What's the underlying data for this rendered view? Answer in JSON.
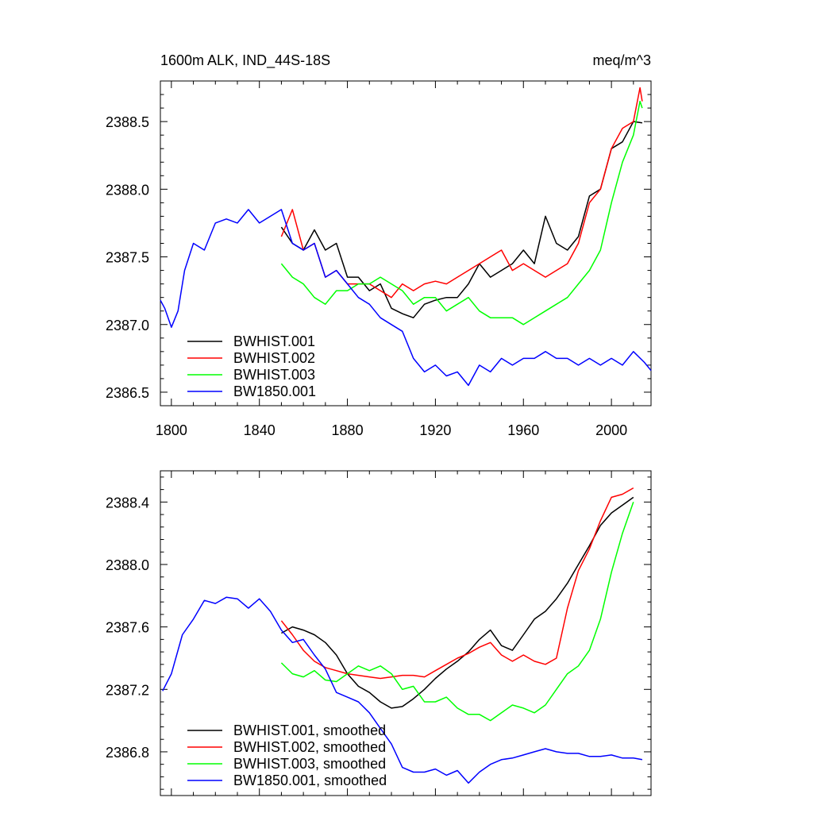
{
  "chart_data": [
    {
      "type": "line",
      "title_left": "1600m ALK, IND_44S-18S",
      "title_right": "meq/m^3",
      "xlim": [
        1795,
        2018
      ],
      "ylim": [
        2386.4,
        2388.8
      ],
      "x_ticks": [
        1800,
        1840,
        1880,
        1920,
        1960,
        2000
      ],
      "x_tick_labels": [
        "1800",
        "1840",
        "1880",
        "1920",
        "1960",
        "2000"
      ],
      "y_ticks": [
        2386.5,
        2387.0,
        2387.5,
        2388.0,
        2388.5
      ],
      "y_tick_labels": [
        "2386.5",
        "2387.0",
        "2387.5",
        "2388.0",
        "2388.5"
      ],
      "legend_position": "lower-left",
      "series": [
        {
          "name": "BWHIST.001",
          "color": "#000000",
          "x": [
            1850,
            1855,
            1860,
            1865,
            1870,
            1875,
            1880,
            1885,
            1890,
            1895,
            1900,
            1905,
            1910,
            1915,
            1920,
            1925,
            1930,
            1935,
            1940,
            1945,
            1950,
            1955,
            1960,
            1965,
            1970,
            1975,
            1980,
            1985,
            1990,
            1995,
            2000,
            2005,
            2010,
            2014
          ],
          "y": [
            2387.72,
            2387.6,
            2387.55,
            2387.7,
            2387.55,
            2387.6,
            2387.35,
            2387.35,
            2387.25,
            2387.3,
            2387.12,
            2387.08,
            2387.05,
            2387.15,
            2387.18,
            2387.2,
            2387.2,
            2387.3,
            2387.45,
            2387.35,
            2387.4,
            2387.45,
            2387.55,
            2387.45,
            2387.8,
            2387.6,
            2387.55,
            2387.65,
            2387.95,
            2388.0,
            2388.3,
            2388.35,
            2388.5,
            2388.49
          ]
        },
        {
          "name": "BWHIST.002",
          "color": "#ff0000",
          "x": [
            1850,
            1855,
            1860,
            1865,
            1870,
            1875,
            1880,
            1885,
            1890,
            1895,
            1900,
            1905,
            1910,
            1915,
            1920,
            1925,
            1930,
            1935,
            1940,
            1945,
            1950,
            1955,
            1960,
            1965,
            1970,
            1975,
            1980,
            1985,
            1990,
            1995,
            2000,
            2005,
            2010,
            2013,
            2014
          ],
          "y": [
            2387.65,
            2387.85,
            2387.55,
            2387.6,
            2387.35,
            2387.4,
            2387.3,
            2387.3,
            2387.3,
            2387.25,
            2387.2,
            2387.3,
            2387.25,
            2387.3,
            2387.32,
            2387.3,
            2387.35,
            2387.4,
            2387.45,
            2387.5,
            2387.55,
            2387.4,
            2387.45,
            2387.4,
            2387.35,
            2387.4,
            2387.45,
            2387.6,
            2387.9,
            2388.0,
            2388.3,
            2388.45,
            2388.5,
            2388.75,
            2388.65
          ]
        },
        {
          "name": "BWHIST.003",
          "color": "#00ff00",
          "x": [
            1850,
            1855,
            1860,
            1865,
            1870,
            1875,
            1880,
            1885,
            1890,
            1895,
            1900,
            1905,
            1910,
            1915,
            1920,
            1925,
            1930,
            1935,
            1940,
            1945,
            1950,
            1955,
            1960,
            1965,
            1970,
            1975,
            1980,
            1985,
            1990,
            1995,
            2000,
            2005,
            2010,
            2013,
            2014
          ],
          "y": [
            2387.45,
            2387.35,
            2387.3,
            2387.2,
            2387.15,
            2387.25,
            2387.25,
            2387.3,
            2387.3,
            2387.35,
            2387.3,
            2387.25,
            2387.15,
            2387.2,
            2387.2,
            2387.1,
            2387.15,
            2387.2,
            2387.1,
            2387.05,
            2387.05,
            2387.05,
            2387.0,
            2387.05,
            2387.1,
            2387.15,
            2387.2,
            2387.3,
            2387.4,
            2387.55,
            2387.9,
            2388.2,
            2388.4,
            2388.65,
            2388.6
          ]
        },
        {
          "name": "BW1850.001",
          "color": "#0000ff",
          "x": [
            1795,
            1797,
            1800,
            1803,
            1806,
            1810,
            1815,
            1820,
            1825,
            1830,
            1835,
            1840,
            1845,
            1850,
            1855,
            1860,
            1865,
            1870,
            1875,
            1880,
            1885,
            1890,
            1895,
            1900,
            1905,
            1910,
            1915,
            1920,
            1925,
            1930,
            1935,
            1940,
            1945,
            1950,
            1955,
            1960,
            1965,
            1970,
            1975,
            1980,
            1985,
            1990,
            1995,
            2000,
            2005,
            2010,
            2015,
            2018
          ],
          "y": [
            2387.18,
            2387.12,
            2386.98,
            2387.1,
            2387.4,
            2387.6,
            2387.55,
            2387.75,
            2387.78,
            2387.75,
            2387.85,
            2387.75,
            2387.8,
            2387.85,
            2387.6,
            2387.55,
            2387.6,
            2387.35,
            2387.4,
            2387.3,
            2387.2,
            2387.15,
            2387.05,
            2387.0,
            2386.95,
            2386.75,
            2386.65,
            2386.7,
            2386.62,
            2386.65,
            2386.55,
            2386.7,
            2386.65,
            2386.75,
            2386.7,
            2386.75,
            2386.75,
            2386.8,
            2386.75,
            2386.75,
            2386.7,
            2386.75,
            2386.7,
            2386.75,
            2386.7,
            2386.8,
            2386.72,
            2386.66
          ]
        }
      ]
    },
    {
      "type": "line",
      "xlim": [
        1795,
        2018
      ],
      "ylim": [
        2386.52,
        2388.6
      ],
      "x_ticks": [
        1800,
        1840,
        1880,
        1920,
        1960,
        2000
      ],
      "y_ticks": [
        2386.8,
        2387.2,
        2387.6,
        2388.0,
        2388.4
      ],
      "y_tick_labels": [
        "2386.8",
        "2387.2",
        "2387.6",
        "2388.0",
        "2388.4"
      ],
      "legend_position": "lower-left",
      "series": [
        {
          "name": "BWHIST.001, smoothed",
          "color": "#000000",
          "x": [
            1850,
            1855,
            1860,
            1865,
            1870,
            1875,
            1880,
            1885,
            1890,
            1895,
            1900,
            1905,
            1910,
            1915,
            1920,
            1925,
            1930,
            1935,
            1940,
            1945,
            1950,
            1955,
            1960,
            1965,
            1970,
            1975,
            1980,
            1985,
            1990,
            1995,
            2000,
            2005,
            2010
          ],
          "y": [
            2387.56,
            2387.6,
            2387.58,
            2387.55,
            2387.5,
            2387.42,
            2387.3,
            2387.22,
            2387.18,
            2387.12,
            2387.08,
            2387.09,
            2387.14,
            2387.2,
            2387.27,
            2387.33,
            2387.38,
            2387.44,
            2387.52,
            2387.58,
            2387.48,
            2387.45,
            2387.55,
            2387.65,
            2387.7,
            2387.78,
            2387.88,
            2388.0,
            2388.12,
            2388.25,
            2388.33,
            2388.38,
            2388.43
          ]
        },
        {
          "name": "BWHIST.002, smoothed",
          "color": "#ff0000",
          "x": [
            1850,
            1855,
            1860,
            1865,
            1870,
            1875,
            1880,
            1885,
            1890,
            1895,
            1900,
            1905,
            1910,
            1915,
            1920,
            1925,
            1930,
            1935,
            1940,
            1945,
            1950,
            1955,
            1960,
            1965,
            1970,
            1975,
            1980,
            1985,
            1990,
            1995,
            2000,
            2005,
            2010
          ],
          "y": [
            2387.64,
            2387.55,
            2387.45,
            2387.38,
            2387.34,
            2387.32,
            2387.3,
            2387.29,
            2387.28,
            2387.27,
            2387.28,
            2387.29,
            2387.29,
            2387.28,
            2387.32,
            2387.36,
            2387.4,
            2387.43,
            2387.47,
            2387.5,
            2387.42,
            2387.38,
            2387.42,
            2387.38,
            2387.36,
            2387.4,
            2387.72,
            2387.96,
            2388.1,
            2388.28,
            2388.43,
            2388.45,
            2388.49
          ]
        },
        {
          "name": "BWHIST.003, smoothed",
          "color": "#00ff00",
          "x": [
            1850,
            1855,
            1860,
            1865,
            1870,
            1875,
            1880,
            1885,
            1890,
            1895,
            1900,
            1905,
            1910,
            1915,
            1920,
            1925,
            1930,
            1935,
            1940,
            1945,
            1950,
            1955,
            1960,
            1965,
            1970,
            1975,
            1980,
            1985,
            1990,
            1995,
            2000,
            2005,
            2010
          ],
          "y": [
            2387.37,
            2387.3,
            2387.28,
            2387.32,
            2387.26,
            2387.25,
            2387.3,
            2387.35,
            2387.32,
            2387.35,
            2387.3,
            2387.2,
            2387.22,
            2387.12,
            2387.12,
            2387.15,
            2387.08,
            2387.04,
            2387.04,
            2387.0,
            2387.05,
            2387.1,
            2387.08,
            2387.05,
            2387.1,
            2387.2,
            2387.3,
            2387.35,
            2387.45,
            2387.65,
            2387.95,
            2388.2,
            2388.4
          ]
        },
        {
          "name": "BW1850.001, smoothed",
          "color": "#0000ff",
          "x": [
            1796,
            1800,
            1805,
            1810,
            1815,
            1820,
            1825,
            1830,
            1835,
            1840,
            1845,
            1850,
            1855,
            1860,
            1865,
            1870,
            1875,
            1880,
            1885,
            1890,
            1895,
            1900,
            1905,
            1910,
            1915,
            1920,
            1925,
            1930,
            1935,
            1940,
            1945,
            1950,
            1955,
            1960,
            1965,
            1970,
            1975,
            1980,
            1985,
            1990,
            1995,
            2000,
            2005,
            2010,
            2014
          ],
          "y": [
            2387.19,
            2387.3,
            2387.55,
            2387.65,
            2387.77,
            2387.75,
            2387.79,
            2387.78,
            2387.72,
            2387.78,
            2387.7,
            2387.58,
            2387.5,
            2387.52,
            2387.42,
            2387.33,
            2387.18,
            2387.15,
            2387.12,
            2387.05,
            2386.95,
            2386.85,
            2386.7,
            2386.67,
            2386.67,
            2386.69,
            2386.65,
            2386.68,
            2386.6,
            2386.67,
            2386.72,
            2386.75,
            2386.76,
            2386.78,
            2386.8,
            2386.82,
            2386.8,
            2386.79,
            2386.79,
            2386.77,
            2386.77,
            2386.78,
            2386.76,
            2386.76,
            2386.75
          ]
        }
      ]
    }
  ]
}
